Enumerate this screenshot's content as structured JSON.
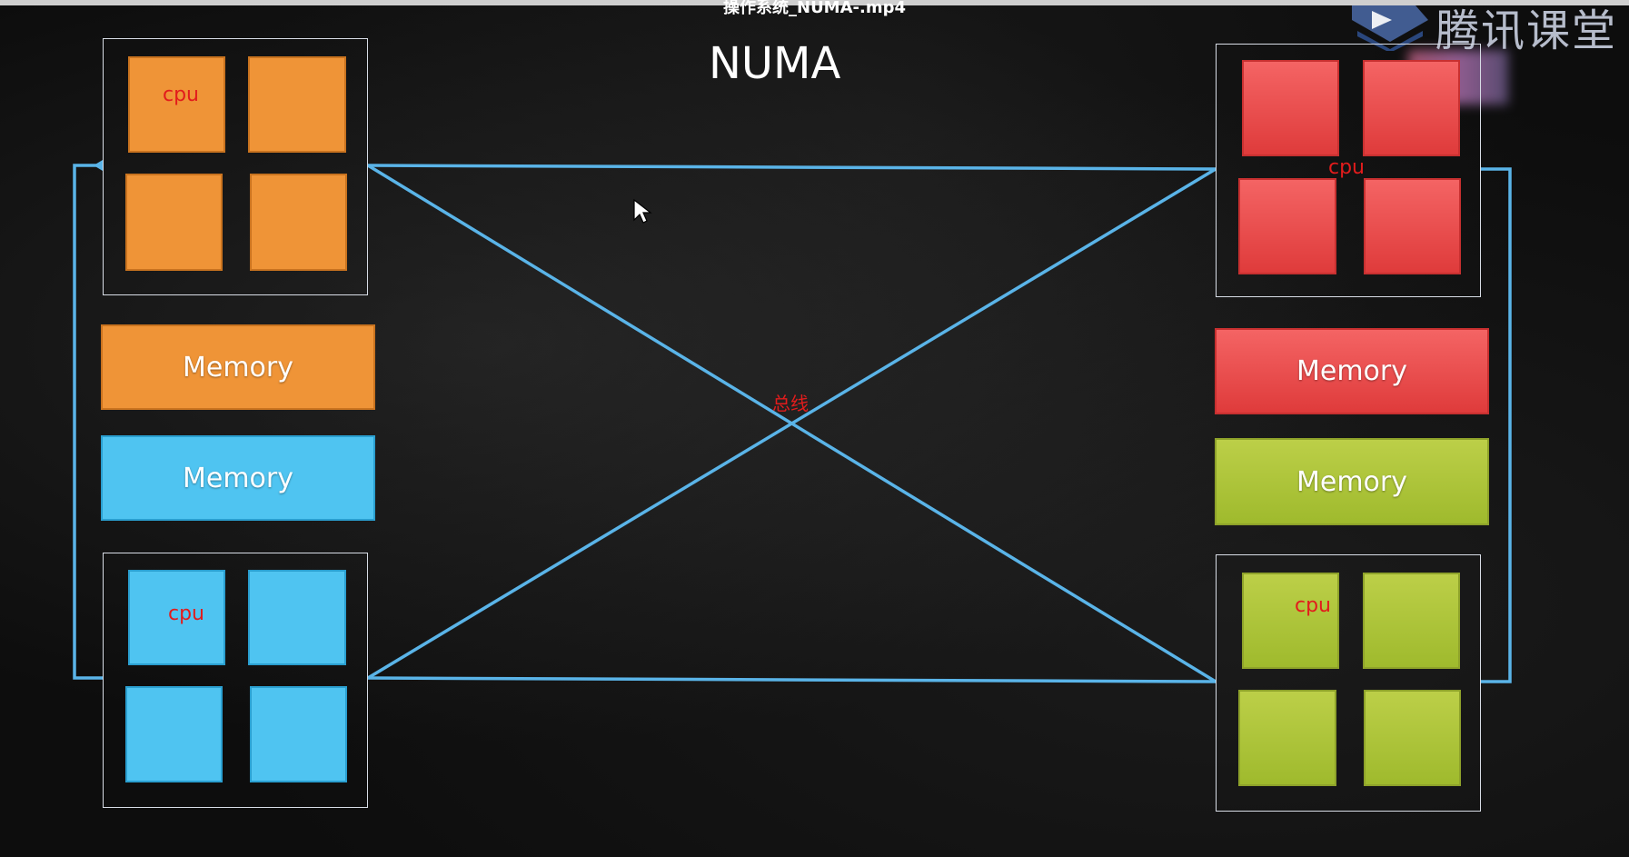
{
  "video": {
    "title": "操作系统_NUMA-.mp4"
  },
  "brand": {
    "text": "腾讯课堂",
    "logo_icon": "tencent-classroom-play-logo"
  },
  "diagram": {
    "title": "NUMA",
    "bus_label": "总线",
    "memory_label": "Memory",
    "cpu_label": "cpu",
    "nodes": {
      "top_left": {
        "color": "#ef9437",
        "cpu_label": "cpu",
        "memory_label": "Memory"
      },
      "bottom_left": {
        "color": "#4fc4f1",
        "cpu_label": "cpu",
        "memory_label": "Memory"
      },
      "top_right": {
        "color": "#ef4a4a",
        "cpu_label": "cpu",
        "memory_label": "Memory"
      },
      "bottom_right": {
        "color": "#acc43b",
        "cpu_label": "cpu",
        "memory_label": "Memory"
      }
    },
    "bus_color": "#5ab4e8"
  }
}
